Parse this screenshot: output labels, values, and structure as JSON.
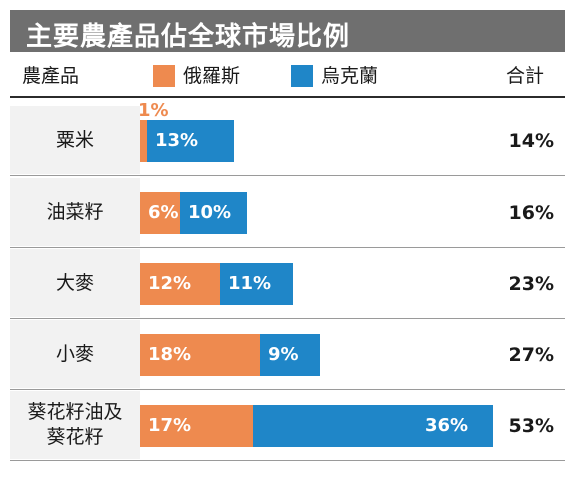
{
  "title": "主要農產品佔全球市場比例",
  "colors": {
    "russia": "#ee8a4f",
    "ukraine": "#1f86c8",
    "title_bg": "#6f6f6f"
  },
  "header": {
    "product": "農產品",
    "total": "合計"
  },
  "chart_data": {
    "type": "bar",
    "orientation": "horizontal",
    "stacked": true,
    "title": "主要農產品佔全球市場比例",
    "categories": [
      "粟米",
      "油菜籽",
      "大麥",
      "小麥",
      "葵花籽油及\n葵花籽"
    ],
    "series": [
      {
        "name": "俄羅斯",
        "values": [
          1,
          6,
          12,
          18,
          17
        ],
        "labels": [
          "1%",
          "6%",
          "12%",
          "18%",
          "17%"
        ]
      },
      {
        "name": "烏克蘭",
        "values": [
          13,
          10,
          11,
          9,
          36
        ],
        "labels": [
          "13%",
          "10%",
          "11%",
          "9%",
          "36%"
        ]
      }
    ],
    "totals": [
      "14%",
      "16%",
      "23%",
      "27%",
      "53%"
    ],
    "legend": "top",
    "grid": false
  }
}
